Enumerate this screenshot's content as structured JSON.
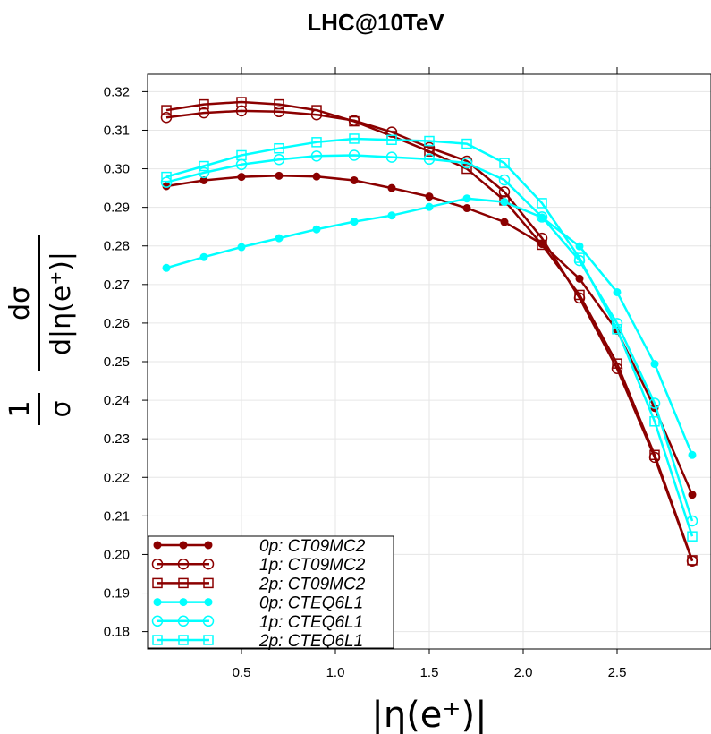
{
  "chart_data": {
    "type": "line",
    "title": "LHC@10TeV",
    "xlabel": "|η(e⁺)|",
    "ylabel_num1": "1",
    "ylabel_den1": "σ",
    "ylabel_num2": "dσ",
    "ylabel_den2": "d|η(e⁺)|",
    "xlim": [
      0.0,
      3.0
    ],
    "ylim": [
      0.1755,
      0.3245
    ],
    "xticks": [
      0.5,
      1.0,
      1.5,
      2.0,
      2.5
    ],
    "xtick_labels": [
      "0.5",
      "1.0",
      "1.5",
      "2.0",
      "2.5"
    ],
    "yticks": [
      0.18,
      0.19,
      0.2,
      0.21,
      0.22,
      0.23,
      0.24,
      0.25,
      0.26,
      0.27,
      0.28,
      0.29,
      0.3,
      0.31,
      0.32
    ],
    "ytick_labels": [
      "0.18",
      "0.19",
      "0.20",
      "0.21",
      "0.22",
      "0.23",
      "0.24",
      "0.25",
      "0.26",
      "0.27",
      "0.28",
      "0.29",
      "0.30",
      "0.31",
      "0.32"
    ],
    "grid": true,
    "legend_position": "bottom-left",
    "x": [
      0.1,
      0.3,
      0.5,
      0.7,
      0.9,
      1.1,
      1.3,
      1.5,
      1.7,
      1.9,
      2.1,
      2.3,
      2.5,
      2.7,
      2.9
    ],
    "series": [
      {
        "name": "0p: CT09MC2",
        "color": "#8b0000",
        "marker": "filled-circle",
        "values": [
          0.2955,
          0.297,
          0.2979,
          0.2982,
          0.298,
          0.297,
          0.295,
          0.2928,
          0.2898,
          0.2862,
          0.2805,
          0.2715,
          0.258,
          0.238,
          0.2155
        ]
      },
      {
        "name": "1p: CT09MC2",
        "color": "#8b0000",
        "marker": "open-circle",
        "values": [
          0.3133,
          0.3145,
          0.315,
          0.3148,
          0.314,
          0.3125,
          0.3095,
          0.3055,
          0.302,
          0.294,
          0.282,
          0.2665,
          0.2482,
          0.2252,
          0.1983
        ]
      },
      {
        "name": "2p: CT09MC2",
        "color": "#8b0000",
        "marker": "open-square",
        "values": [
          0.3152,
          0.3167,
          0.3173,
          0.3167,
          0.3152,
          0.3123,
          0.3085,
          0.3045,
          0.3,
          0.2918,
          0.2803,
          0.2673,
          0.2495,
          0.2258,
          0.1985
        ]
      },
      {
        "name": "0p: CTEQ6L1",
        "color": "#00ffff",
        "marker": "filled-circle",
        "values": [
          0.2743,
          0.2771,
          0.2797,
          0.282,
          0.2843,
          0.2863,
          0.2879,
          0.2901,
          0.2923,
          0.2914,
          0.2874,
          0.2799,
          0.268,
          0.2494,
          0.2258
        ]
      },
      {
        "name": "1p: CTEQ6L1",
        "color": "#00ffff",
        "marker": "open-circle",
        "values": [
          0.2965,
          0.299,
          0.3011,
          0.3024,
          0.3033,
          0.3035,
          0.303,
          0.3025,
          0.3015,
          0.2971,
          0.2875,
          0.2762,
          0.2599,
          0.2392,
          0.2087
        ]
      },
      {
        "name": "2p: CTEQ6L1",
        "color": "#00ffff",
        "marker": "open-square",
        "values": [
          0.2979,
          0.3007,
          0.3035,
          0.3053,
          0.3069,
          0.3078,
          0.3075,
          0.3072,
          0.3065,
          0.3015,
          0.2911,
          0.2769,
          0.2584,
          0.2345,
          0.2047
        ]
      }
    ]
  }
}
